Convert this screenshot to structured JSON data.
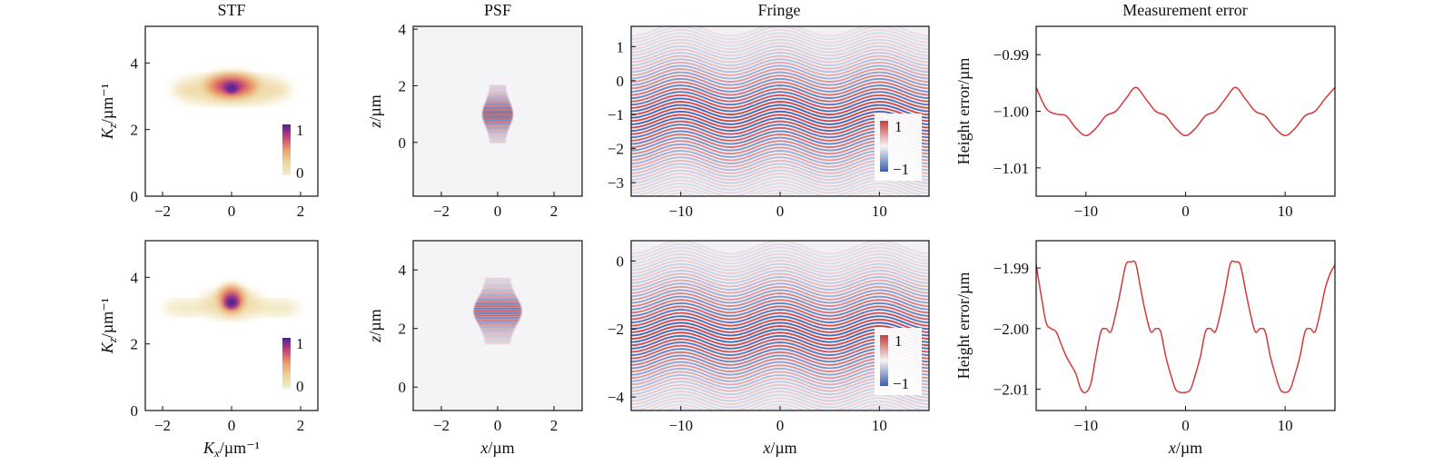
{
  "figure": {
    "column_titles": [
      "STF",
      "PSF",
      "Fringe",
      "Measurement error"
    ]
  },
  "colors": {
    "stf_colormap": [
      "#f4efd2",
      "#ecd59a",
      "#e8a26a",
      "#d6526f",
      "#8e2a8c",
      "#3a2f8f"
    ],
    "fringe_pos": "#cc3b3b",
    "fringe_neg": "#3a5fb0",
    "fringe_bg": "#f1f0f4",
    "psf_bg": "#f4f3f6",
    "error_line": "#d23a3a",
    "axis": "#111111"
  },
  "chart_data": [
    {
      "type": "heatmap",
      "panel": "stf-top",
      "title": "STF",
      "xlabel": "",
      "ylabel": "Kz/µm⁻¹",
      "xlim": [
        -2.5,
        2.5
      ],
      "ylim": [
        0,
        5.1
      ],
      "xticks": [
        -2,
        0,
        2
      ],
      "yticks": [
        0,
        2,
        4
      ],
      "blob": {
        "center": [
          0,
          3.25
        ],
        "extent_x": 1.8
      },
      "colorbar": {
        "range": [
          0,
          1
        ],
        "ticks": [
          "1",
          "0"
        ]
      }
    },
    {
      "type": "heatmap",
      "panel": "psf-top",
      "title": "PSF",
      "xlabel": "",
      "ylabel": "z/µm",
      "xlim": [
        -3,
        3
      ],
      "ylim": [
        -1.9,
        4.1
      ],
      "xticks": [
        -2,
        0,
        2
      ],
      "yticks": [
        0,
        2,
        4
      ],
      "blob": {
        "center": [
          0,
          1.0
        ],
        "extent_z": 1.8
      }
    },
    {
      "type": "heatmap",
      "panel": "fringe-top",
      "title": "Fringe",
      "xlabel": "",
      "ylabel": "",
      "xlim": [
        -15,
        15
      ],
      "ylim": [
        -3.4,
        1.6
      ],
      "xticks": [
        -10,
        0,
        10
      ],
      "yticks": [
        -3,
        -2,
        -1,
        0,
        1
      ],
      "band_center": -1.0,
      "period": 10,
      "colorbar": {
        "range": [
          -1,
          1
        ],
        "ticks": [
          "1",
          "−1"
        ]
      }
    },
    {
      "type": "line",
      "panel": "error-top",
      "title": "Measurement error",
      "xlabel": "",
      "ylabel": "Height error/µm",
      "xlim": [
        -15,
        15
      ],
      "ylim": [
        -1.015,
        -0.985
      ],
      "xticks": [
        -10,
        0,
        10
      ],
      "ytick_labels": [
        "−0.99",
        "−1.00",
        "−1.01"
      ],
      "ytick_values": [
        -0.99,
        -1.0,
        -1.01
      ],
      "series": [
        {
          "x": [
            -15,
            -14,
            -13,
            -12,
            -11,
            -10,
            -9,
            -8,
            -7,
            -6,
            -5,
            -4,
            -3,
            -2,
            -1,
            0,
            1,
            2,
            3,
            4,
            5,
            6,
            7,
            8,
            9,
            10,
            11,
            12,
            13,
            14,
            15
          ],
          "values": [
            -0.9958,
            -0.9995,
            -1.0005,
            -1.0008,
            -1.003,
            -1.0043,
            -1.003,
            -1.0008,
            -1.0,
            -0.9978,
            -0.9958,
            -0.9978,
            -1.0,
            -1.0008,
            -1.003,
            -1.0043,
            -1.003,
            -1.0008,
            -1.0,
            -0.9978,
            -0.9958,
            -0.9978,
            -1.0,
            -1.0008,
            -1.003,
            -1.0043,
            -1.003,
            -1.0008,
            -1.0,
            -0.9978,
            -0.9958
          ]
        }
      ]
    },
    {
      "type": "heatmap",
      "panel": "stf-bottom",
      "xlabel": "Kx/µm⁻¹",
      "ylabel": "Kz/µm⁻¹",
      "xlim": [
        -2.5,
        2.5
      ],
      "ylim": [
        0,
        5.1
      ],
      "xticks": [
        -2,
        0,
        2
      ],
      "yticks": [
        0,
        2,
        4
      ],
      "blob": {
        "center": [
          0,
          3.25
        ],
        "extent_x": 1.8
      },
      "colorbar": {
        "range": [
          0,
          1
        ],
        "ticks": [
          "1",
          "0"
        ]
      }
    },
    {
      "type": "heatmap",
      "panel": "psf-bottom",
      "xlabel": "x/µm",
      "ylabel": "z/µm",
      "xlim": [
        -3,
        3
      ],
      "ylim": [
        -0.8,
        5.0
      ],
      "xticks": [
        -2,
        0,
        2
      ],
      "yticks": [
        0,
        2,
        4
      ],
      "blob": {
        "center": [
          0,
          2.6
        ],
        "extent_z": 2.0
      }
    },
    {
      "type": "heatmap",
      "panel": "fringe-bottom",
      "xlabel": "x/µm",
      "ylabel": "",
      "xlim": [
        -15,
        15
      ],
      "ylim": [
        -4.4,
        0.6
      ],
      "xticks": [
        -10,
        0,
        10
      ],
      "yticks": [
        -4,
        -2,
        0
      ],
      "band_center": -2.1,
      "period": 10,
      "colorbar": {
        "range": [
          -1,
          1
        ],
        "ticks": [
          "1",
          "−1"
        ]
      }
    },
    {
      "type": "line",
      "panel": "error-bottom",
      "xlabel": "x/µm",
      "ylabel": "Height error/µm",
      "xlim": [
        -15,
        15
      ],
      "ylim": [
        -2.0135,
        -1.9855
      ],
      "xticks": [
        -10,
        0,
        10
      ],
      "ytick_labels": [
        "−1.99",
        "−2.00",
        "−2.01"
      ],
      "ytick_values": [
        -1.99,
        -2.0,
        -2.01
      ],
      "series": [
        {
          "x": [
            -15,
            -14.5,
            -14,
            -13.5,
            -13,
            -12.5,
            -12,
            -11.5,
            -11,
            -10.5,
            -10,
            -9.5,
            -9,
            -8.5,
            -8,
            -7.5,
            -7,
            -6.5,
            -6,
            -5.5,
            -5,
            -4.5,
            -4,
            -3.5,
            -3,
            -2.5,
            -2,
            -1.5,
            -1,
            -0.5,
            0,
            0.5,
            1,
            1.5,
            2,
            2.5,
            3,
            3.5,
            4,
            4.5,
            5,
            5.5,
            6,
            6.5,
            7,
            7.5,
            8,
            8.5,
            9,
            9.5,
            10,
            10.5,
            11,
            11.5,
            12,
            12.5,
            13,
            13.5,
            14,
            14.5,
            15
          ],
          "values": [
            -1.9895,
            -1.9945,
            -1.999,
            -2.0,
            -2.0005,
            -2.0025,
            -2.0045,
            -2.006,
            -2.0075,
            -2.01,
            -2.0105,
            -2.009,
            -2.0045,
            -2.0005,
            -2.0,
            -2.0005,
            -1.9975,
            -1.9935,
            -1.9895,
            -1.989,
            -1.9893,
            -1.9935,
            -1.9975,
            -2.0005,
            -2.0,
            -2.0005,
            -2.0045,
            -2.0075,
            -2.01,
            -2.0105,
            -2.0105,
            -2.01,
            -2.0075,
            -2.0045,
            -2.0005,
            -2.0,
            -2.0005,
            -1.9975,
            -1.9935,
            -1.9893,
            -1.989,
            -1.9895,
            -1.9935,
            -1.9975,
            -2.0005,
            -2.0,
            -2.0005,
            -2.0045,
            -2.0075,
            -2.01,
            -2.0105,
            -2.01,
            -2.0075,
            -2.0045,
            -2.0005,
            -2.0,
            -2.0005,
            -1.9975,
            -1.9935,
            -1.991,
            -1.9895
          ]
        }
      ]
    }
  ]
}
